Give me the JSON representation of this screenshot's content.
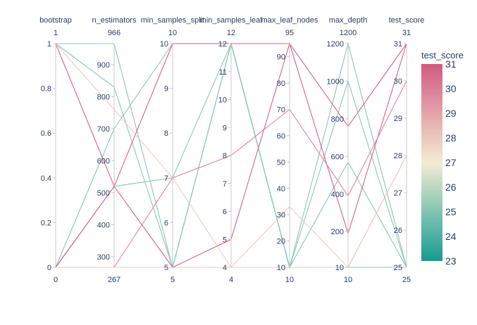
{
  "chart_data": {
    "type": "parallel_coordinates",
    "color_dimension": "test_score",
    "colorscale": [
      "#139c93",
      "#f4ecd2",
      "#d25a82"
    ],
    "colorbar": {
      "title": "test_score",
      "range": [
        23,
        31
      ],
      "ticks": [
        "31",
        "30",
        "29",
        "28",
        "27",
        "26",
        "25",
        "24",
        "23"
      ]
    },
    "dimensions": [
      {
        "label": "bootstrap",
        "range": [
          0,
          1
        ],
        "range_min_label": "0",
        "range_max_label": "1",
        "ticks": [
          {
            "v": 0,
            "t": "0"
          },
          {
            "v": 0.2,
            "t": "0.2"
          },
          {
            "v": 0.4,
            "t": "0.4"
          },
          {
            "v": 0.6,
            "t": "0.6"
          },
          {
            "v": 0.8,
            "t": "0.8"
          },
          {
            "v": 1,
            "t": "1"
          }
        ]
      },
      {
        "label": "n_estimators",
        "range": [
          267,
          966
        ],
        "range_min_label": "267",
        "range_max_label": "966",
        "ticks": [
          {
            "v": 300,
            "t": "300"
          },
          {
            "v": 400,
            "t": "400"
          },
          {
            "v": 500,
            "t": "500"
          },
          {
            "v": 600,
            "t": "600"
          },
          {
            "v": 700,
            "t": "700"
          },
          {
            "v": 800,
            "t": "800"
          },
          {
            "v": 900,
            "t": "900"
          }
        ]
      },
      {
        "label": "min_samples_split",
        "range": [
          5,
          10
        ],
        "range_min_label": "5",
        "range_max_label": "10",
        "ticks": [
          {
            "v": 5,
            "t": "5"
          },
          {
            "v": 6,
            "t": "6"
          },
          {
            "v": 7,
            "t": "7"
          },
          {
            "v": 8,
            "t": "8"
          },
          {
            "v": 9,
            "t": "9"
          },
          {
            "v": 10,
            "t": "10"
          }
        ]
      },
      {
        "label": "min_samples_leaf",
        "range": [
          4,
          12
        ],
        "range_min_label": "4",
        "range_max_label": "12",
        "ticks": [
          {
            "v": 4,
            "t": "4"
          },
          {
            "v": 5,
            "t": "5"
          },
          {
            "v": 6,
            "t": "6"
          },
          {
            "v": 7,
            "t": "7"
          },
          {
            "v": 8,
            "t": "8"
          },
          {
            "v": 9,
            "t": "9"
          },
          {
            "v": 10,
            "t": "10"
          },
          {
            "v": 11,
            "t": "11"
          },
          {
            "v": 12,
            "t": "12"
          }
        ]
      },
      {
        "label": "max_leaf_nodes",
        "range": [
          10,
          95
        ],
        "range_min_label": "10",
        "range_max_label": "95",
        "ticks": [
          {
            "v": 10,
            "t": "10"
          },
          {
            "v": 20,
            "t": "20"
          },
          {
            "v": 30,
            "t": "30"
          },
          {
            "v": 40,
            "t": "40"
          },
          {
            "v": 50,
            "t": "50"
          },
          {
            "v": 60,
            "t": "60"
          },
          {
            "v": 70,
            "t": "70"
          },
          {
            "v": 80,
            "t": "80"
          },
          {
            "v": 90,
            "t": "90"
          }
        ]
      },
      {
        "label": "max_depth",
        "range": [
          10,
          1200
        ],
        "range_min_label": "10",
        "range_max_label": "1200",
        "ticks": [
          {
            "v": 10,
            "t": "10"
          },
          {
            "v": 200,
            "t": "200"
          },
          {
            "v": 400,
            "t": "400"
          },
          {
            "v": 600,
            "t": "600"
          },
          {
            "v": 800,
            "t": "800"
          },
          {
            "v": 1000,
            "t": "1000"
          },
          {
            "v": 1200,
            "t": "1200"
          }
        ]
      },
      {
        "label": "test_score",
        "range": [
          25,
          31
        ],
        "range_min_label": "25",
        "range_max_label": "31",
        "ticks": [
          {
            "v": 25,
            "t": "25"
          },
          {
            "v": 26,
            "t": "26"
          },
          {
            "v": 27,
            "t": "27"
          },
          {
            "v": 28,
            "t": "28"
          },
          {
            "v": 29,
            "t": "29"
          },
          {
            "v": 30,
            "t": "30"
          },
          {
            "v": 31,
            "t": "31"
          }
        ]
      }
    ],
    "rows": [
      [
        1,
        966,
        5,
        12,
        10,
        1200,
        25
      ],
      [
        0,
        700,
        10,
        12,
        10,
        1000,
        25
      ],
      [
        1,
        830,
        5,
        12,
        10,
        570,
        25
      ],
      [
        0,
        520,
        7,
        12,
        10,
        10,
        25
      ],
      [
        1,
        520,
        5,
        5,
        95,
        190,
        31
      ],
      [
        0,
        520,
        10,
        12,
        95,
        760,
        31
      ],
      [
        1,
        760,
        7,
        4,
        10,
        10,
        28
      ],
      [
        0,
        267,
        7,
        8,
        70,
        390,
        30
      ],
      [
        0,
        267,
        5,
        4,
        33,
        10,
        28
      ]
    ]
  }
}
